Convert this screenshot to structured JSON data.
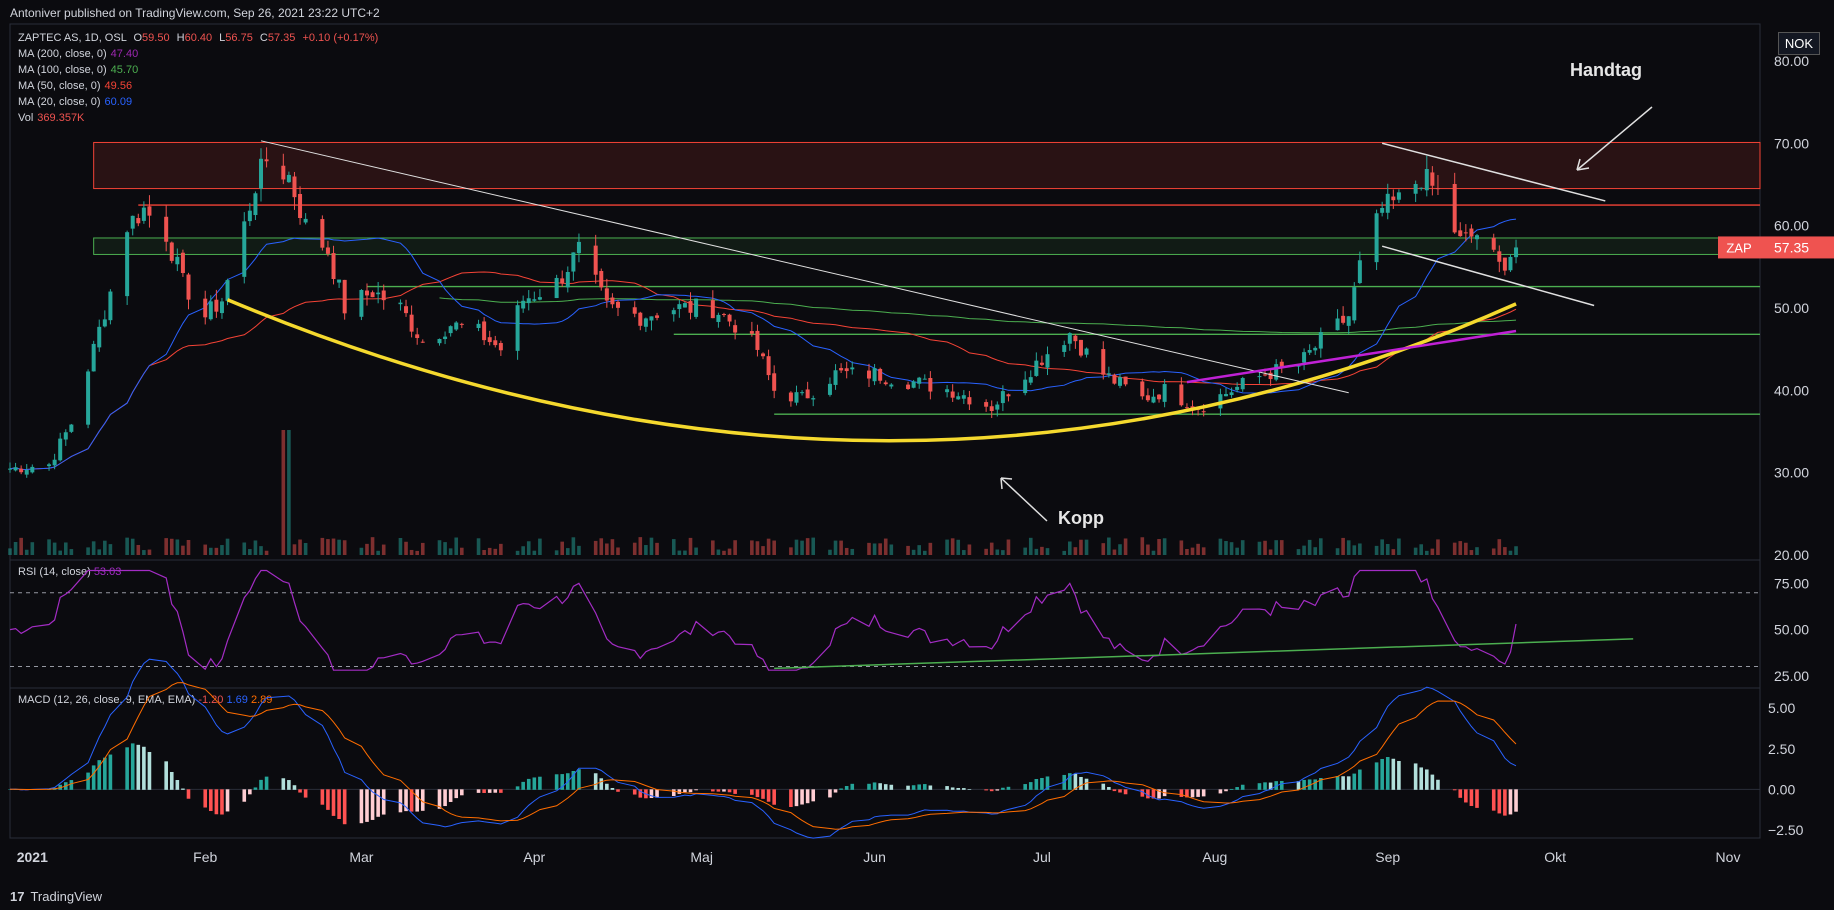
{
  "header": {
    "published": "Antoniver published on TradingView.com, Sep 26, 2021 23:22 UTC+2"
  },
  "currency_button": "NOK",
  "legend": {
    "symbol": "ZAPTEC AS, 1D, OSL",
    "o_label": "O",
    "o_value": "59.50",
    "h_label": "H",
    "h_value": "60.40",
    "l_label": "L",
    "l_value": "56.75",
    "c_label": "C",
    "c_value": "57.35",
    "change": "+0.10 (+0.17%)",
    "ma200_label": "MA (200, close, 0)",
    "ma200_value": "47.40",
    "ma100_label": "MA (100, close, 0)",
    "ma100_value": "45.70",
    "ma50_label": "MA (50, close, 0)",
    "ma50_value": "49.56",
    "ma20_label": "MA (20, close, 0)",
    "ma20_value": "60.09",
    "vol_label": "Vol",
    "vol_value": "369.357K"
  },
  "rsi_legend": {
    "label": "RSI (14, close)",
    "value": "53.03"
  },
  "macd_legend": {
    "label": "MACD (12, 26, close, 9, EMA, EMA)",
    "hist": "-1.20",
    "macd": "1.69",
    "signal": "2.89"
  },
  "annotations": {
    "handtag": "Handtag",
    "kopp": "Kopp"
  },
  "price_tag": {
    "symbol": "ZAP",
    "value": "57.35"
  },
  "footer": {
    "brand": "TradingView"
  },
  "colors": {
    "up": "#26a69a",
    "down": "#ef5350",
    "ma200": "#9c27b0",
    "ma100": "#4caf50",
    "ma50": "#f44336",
    "ma20": "#2962ff",
    "cup": "#f5d92e",
    "trend": "#e0e0e0",
    "green_zone": "#4caf50",
    "red_zone": "#f44336",
    "rsi": "#a32cc4",
    "macd": "#2962ff",
    "signal": "#ff6d00"
  },
  "chart_data": [
    {
      "type": "candlestick",
      "title": "ZAPTEC AS, 1D, OSL",
      "x_ticks": [
        "2021",
        "Feb",
        "Mar",
        "Apr",
        "Maj",
        "Jun",
        "Jul",
        "Aug",
        "Sep",
        "Okt",
        "Nov"
      ],
      "y_ticks": [
        "80.00",
        "70.00",
        "60.00",
        "50.00",
        "40.00",
        "30.00",
        "20.00"
      ],
      "ylim": [
        20,
        84
      ],
      "close_anchors": [
        [
          "2020-12-28",
          30.5
        ],
        [
          "2021-01-04",
          31
        ],
        [
          "2021-01-08",
          36
        ],
        [
          "2021-01-12",
          45
        ],
        [
          "2021-01-15",
          52
        ],
        [
          "2021-01-18",
          60
        ],
        [
          "2021-01-21",
          62
        ],
        [
          "2021-01-25",
          59
        ],
        [
          "2021-01-28",
          53
        ],
        [
          "2021-02-01",
          49
        ],
        [
          "2021-02-04",
          51
        ],
        [
          "2021-02-08",
          60
        ],
        [
          "2021-02-10",
          65
        ],
        [
          "2021-02-12",
          68
        ],
        [
          "2021-02-16",
          66
        ],
        [
          "2021-02-19",
          60
        ],
        [
          "2021-02-23",
          57
        ],
        [
          "2021-02-26",
          50
        ],
        [
          "2021-03-03",
          52
        ],
        [
          "2021-03-08",
          50
        ],
        [
          "2021-03-12",
          46
        ],
        [
          "2021-03-17",
          48
        ],
        [
          "2021-03-22",
          47
        ],
        [
          "2021-03-26",
          45
        ],
        [
          "2021-03-30",
          51
        ],
        [
          "2021-04-05",
          53
        ],
        [
          "2021-04-09",
          57
        ],
        [
          "2021-04-14",
          50
        ],
        [
          "2021-04-20",
          49
        ],
        [
          "2021-04-26",
          50
        ],
        [
          "2021-05-03",
          50
        ],
        [
          "2021-05-07",
          48
        ],
        [
          "2021-05-11",
          45
        ],
        [
          "2021-05-14",
          40
        ],
        [
          "2021-05-19",
          39
        ],
        [
          "2021-05-25",
          42
        ],
        [
          "2021-06-01",
          42
        ],
        [
          "2021-06-08",
          41
        ],
        [
          "2021-06-15",
          40
        ],
        [
          "2021-06-22",
          38
        ],
        [
          "2021-06-28",
          42
        ],
        [
          "2021-07-01",
          44
        ],
        [
          "2021-07-06",
          47
        ],
        [
          "2021-07-12",
          42
        ],
        [
          "2021-07-19",
          39
        ],
        [
          "2021-07-23",
          40
        ],
        [
          "2021-07-29",
          38
        ],
        [
          "2021-08-04",
          40
        ],
        [
          "2021-08-10",
          42
        ],
        [
          "2021-08-16",
          43
        ],
        [
          "2021-08-20",
          46
        ],
        [
          "2021-08-25",
          49
        ],
        [
          "2021-08-27",
          55
        ],
        [
          "2021-08-31",
          62
        ],
        [
          "2021-09-03",
          63
        ],
        [
          "2021-09-07",
          66
        ],
        [
          "2021-09-10",
          64
        ],
        [
          "2021-09-14",
          58
        ],
        [
          "2021-09-17",
          59
        ],
        [
          "2021-09-21",
          55
        ],
        [
          "2021-09-24",
          57.35
        ]
      ],
      "volume_spike": {
        "date": "2021-02-15",
        "relative": 1.0
      },
      "moving_averages": [
        {
          "name": "MA (20, close, 0)",
          "value": 60.09
        },
        {
          "name": "MA (50, close, 0)",
          "value": 49.56
        },
        {
          "name": "MA (100, close, 0)",
          "value": 45.7
        },
        {
          "name": "MA (200, close, 0)",
          "value": 47.4
        }
      ],
      "zones": [
        {
          "kind": "red",
          "from": 64.5,
          "to": 70.1
        },
        {
          "kind": "green",
          "from": 56.5,
          "to": 58.5
        }
      ],
      "levels": [
        62.5,
        52.6,
        46.8,
        37.1
      ],
      "annotations": [
        "Handtag",
        "Kopp"
      ]
    },
    {
      "type": "line",
      "title": "RSI (14, close)",
      "y_ticks": [
        "75.00",
        "50.00",
        "25.00"
      ],
      "ylim": [
        20,
        85
      ],
      "bands": [
        70,
        30
      ],
      "last_value": 53.03
    },
    {
      "type": "line",
      "title": "MACD (12, 26, close, 9, EMA, EMA)",
      "y_ticks": [
        "5.00",
        "2.50",
        "0.00",
        "−2.50"
      ],
      "ylim": [
        -3,
        6
      ],
      "series": [
        {
          "name": "MACD",
          "last_value": 1.69
        },
        {
          "name": "Signal",
          "last_value": 2.89
        },
        {
          "name": "Histogram",
          "last_value": -1.2
        }
      ]
    }
  ]
}
